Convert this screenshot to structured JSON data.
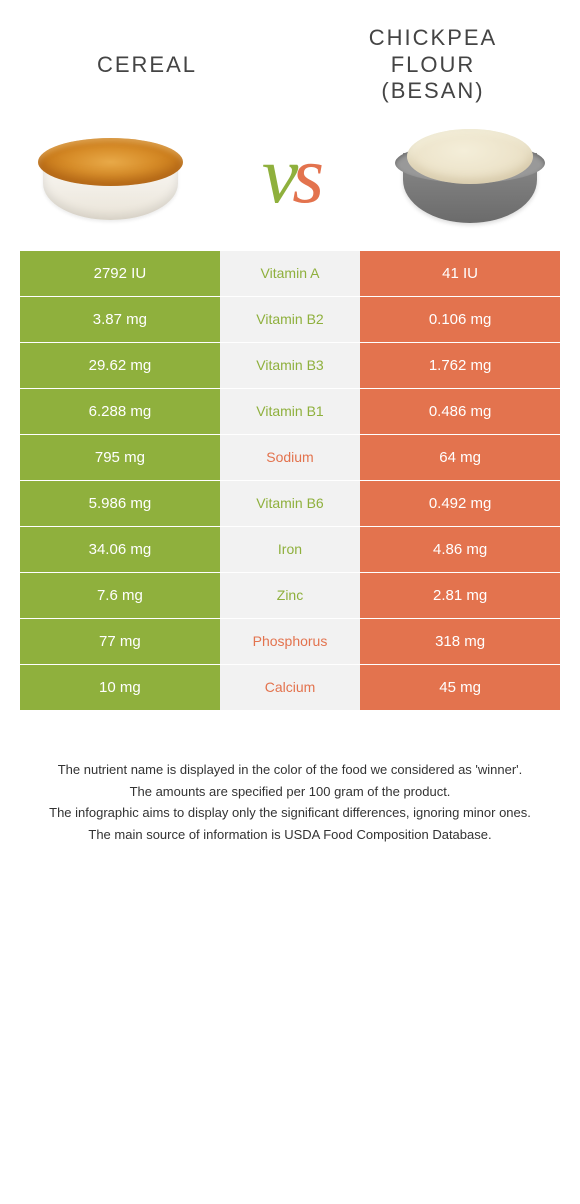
{
  "colors": {
    "left": "#8fb03d",
    "right": "#e3734e",
    "midBg": "#f2f2f2",
    "cellText": "#ffffff",
    "titleText": "#444444"
  },
  "header": {
    "leftTitle": "CEREAL",
    "rightLine1": "CHICKPEA",
    "rightLine2": "FLOUR",
    "rightLine3": "(BESAN)",
    "titleFontSize": 22
  },
  "vs": {
    "fontSize": 82,
    "v_color": "#8fb03d",
    "s_color": "#e3734e"
  },
  "rows": [
    {
      "left": "2792 IU",
      "mid": "Vitamin A",
      "right": "41 IU",
      "winner": "left"
    },
    {
      "left": "3.87 mg",
      "mid": "Vitamin B2",
      "right": "0.106 mg",
      "winner": "left"
    },
    {
      "left": "29.62 mg",
      "mid": "Vitamin B3",
      "right": "1.762 mg",
      "winner": "left"
    },
    {
      "left": "6.288 mg",
      "mid": "Vitamin B1",
      "right": "0.486 mg",
      "winner": "left"
    },
    {
      "left": "795 mg",
      "mid": "Sodium",
      "right": "64 mg",
      "winner": "right"
    },
    {
      "left": "5.986 mg",
      "mid": "Vitamin B6",
      "right": "0.492 mg",
      "winner": "left"
    },
    {
      "left": "34.06 mg",
      "mid": "Iron",
      "right": "4.86 mg",
      "winner": "left"
    },
    {
      "left": "7.6 mg",
      "mid": "Zinc",
      "right": "2.81 mg",
      "winner": "left"
    },
    {
      "left": "77 mg",
      "mid": "Phosphorus",
      "right": "318 mg",
      "winner": "right"
    },
    {
      "left": "10 mg",
      "mid": "Calcium",
      "right": "45 mg",
      "winner": "right"
    }
  ],
  "footnotes": [
    "The nutrient name is displayed in the color of the food we considered as 'winner'.",
    "The amounts are specified per 100 gram of the product.",
    "The infographic aims to display only the significant differences, ignoring minor ones.",
    "The main source of information is USDA Food Composition Database."
  ]
}
